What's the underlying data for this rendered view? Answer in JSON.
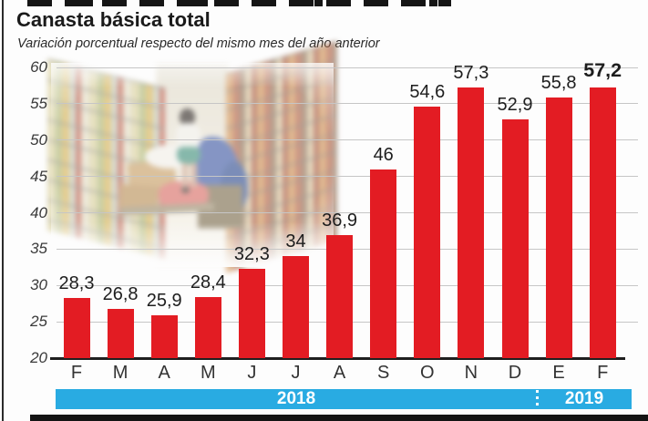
{
  "header": {
    "title": "Canasta básica total",
    "subtitle": "Variación porcentual respecto del mismo mes del año anterior"
  },
  "colors": {
    "bar": "#e31c23",
    "band": "#29abe2",
    "grid": "#c6c6c6",
    "baseline": "#1f1f1f",
    "axis_text": "#3a3a3a",
    "value_text": "#1d1d1d",
    "band_text": "#ffffff"
  },
  "chart_data": {
    "type": "bar",
    "title": "Canasta básica total",
    "subtitle": "Variación porcentual respecto del mismo mes del año anterior",
    "categories": [
      "F",
      "M",
      "A",
      "M",
      "J",
      "J",
      "A",
      "S",
      "O",
      "N",
      "D",
      "E",
      "F"
    ],
    "values": [
      28.3,
      26.8,
      25.9,
      28.4,
      32.3,
      34,
      36.9,
      46,
      54.6,
      57.3,
      52.9,
      55.8,
      57.2
    ],
    "value_labels": [
      "28,3",
      "26,8",
      "25,9",
      "28,4",
      "32,3",
      "34",
      "36,9",
      "46",
      "54,6",
      "57,3",
      "52,9",
      "55,8",
      "57,2"
    ],
    "emphasis_index": 12,
    "xlabel": "",
    "ylabel": "",
    "ylim": [
      20,
      60
    ],
    "yticks": [
      20,
      25,
      30,
      35,
      40,
      45,
      50,
      55,
      60
    ],
    "grid": true,
    "legend": "none",
    "bar_color": "#e31c23",
    "year_bands": [
      {
        "label": "2018",
        "first_month_index": 0,
        "last_month_index": 10
      },
      {
        "label": "2019",
        "first_month_index": 11,
        "last_month_index": 12
      }
    ]
  },
  "year_band": {
    "left_label": "2018",
    "right_label": "2019"
  }
}
